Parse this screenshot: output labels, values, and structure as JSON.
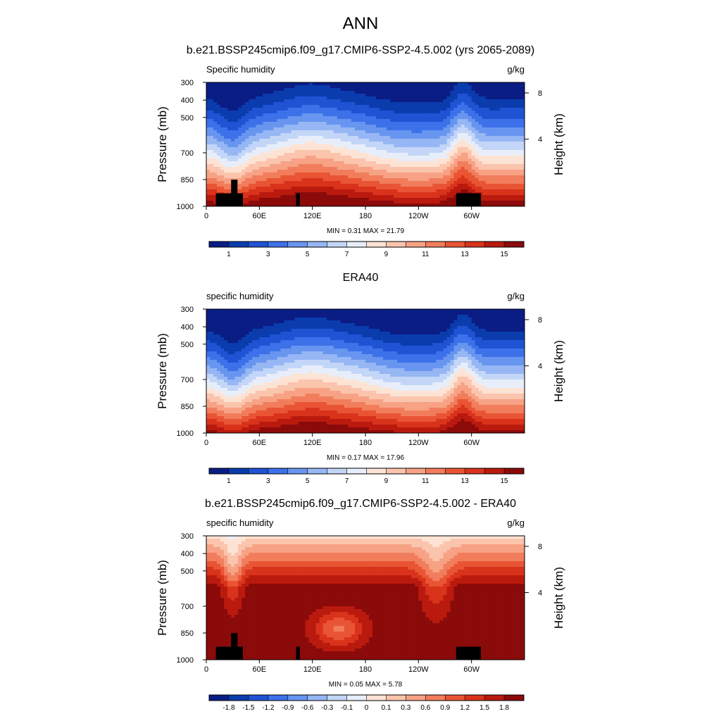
{
  "figure": {
    "title": "ANN"
  },
  "chart_data": [
    {
      "type": "heatmap",
      "title": "b.e21.BSSP245cmip6.f09_g17.CMIP6-SSP2-4.5.002 (yrs 2065-2089)",
      "left_label": "Specific humidity",
      "right_label": "g/kg",
      "ylabel": "Pressure (mb)",
      "ylabel_right": "Height (km)",
      "x_ticks": [
        "0",
        "60E",
        "120E",
        "180",
        "120W",
        "60W"
      ],
      "y_ticks": [
        "300",
        "400",
        "500",
        "700",
        "850",
        "1000"
      ],
      "y2_ticks": [
        "8",
        "4"
      ],
      "stats": "MIN =   0.31  MAX =  21.79",
      "min": 0.31,
      "max": 21.79,
      "colorbar_labels": [
        "1",
        "3",
        "5",
        "7",
        "9",
        "11",
        "13",
        "15"
      ],
      "field": "full"
    },
    {
      "type": "heatmap",
      "title": "ERA40",
      "left_label": "specific humidity",
      "right_label": "g/kg",
      "ylabel": "Pressure (mb)",
      "ylabel_right": "Height (km)",
      "x_ticks": [
        "0",
        "60E",
        "120E",
        "180",
        "120W",
        "60W"
      ],
      "y_ticks": [
        "300",
        "400",
        "500",
        "700",
        "850",
        "1000"
      ],
      "y2_ticks": [
        "8",
        "4"
      ],
      "stats": "MIN =   0.17  MAX =  17.96",
      "min": 0.17,
      "max": 17.96,
      "colorbar_labels": [
        "1",
        "3",
        "5",
        "7",
        "9",
        "11",
        "13",
        "15"
      ],
      "field": "full"
    },
    {
      "type": "heatmap",
      "title": "b.e21.BSSP245cmip6.f09_g17.CMIP6-SSP2-4.5.002 - ERA40",
      "left_label": "specific humidity",
      "right_label": "g/kg",
      "ylabel": "Pressure (mb)",
      "ylabel_right": "Height (km)",
      "x_ticks": [
        "0",
        "60E",
        "120E",
        "180",
        "120W",
        "60W"
      ],
      "y_ticks": [
        "300",
        "400",
        "500",
        "700",
        "850",
        "1000"
      ],
      "y2_ticks": [
        "8",
        "4"
      ],
      "stats": "MIN =   0.05  MAX =   5.78",
      "min": 0.05,
      "max": 5.78,
      "colorbar_labels": [
        "-1.8",
        "-1.5",
        "-1.2",
        "-0.9",
        "-0.6",
        "-0.3",
        "-0.1",
        "0",
        "0.1",
        "0.3",
        "0.6",
        "0.9",
        "1.2",
        "1.5",
        "1.8"
      ],
      "field": "diff"
    }
  ],
  "palettes": {
    "full": [
      "#0a1d84",
      "#0b3cae",
      "#1f53d4",
      "#3d71ea",
      "#6895ef",
      "#96b6f4",
      "#c3d6f8",
      "#e8eef9",
      "#fde3d4",
      "#fbc4ad",
      "#f7a285",
      "#f17d5c",
      "#e95534",
      "#d9331c",
      "#ba1a0e",
      "#8b0a0a"
    ],
    "diff": [
      "#0a1d84",
      "#0b3cae",
      "#1f53d4",
      "#3d71ea",
      "#6895ef",
      "#96b6f4",
      "#c3d6f8",
      "#e8eef9",
      "#fde3d4",
      "#fbc4ad",
      "#f7a285",
      "#f17d5c",
      "#e95534",
      "#d9331c",
      "#ba1a0e",
      "#8b0a0a"
    ]
  }
}
